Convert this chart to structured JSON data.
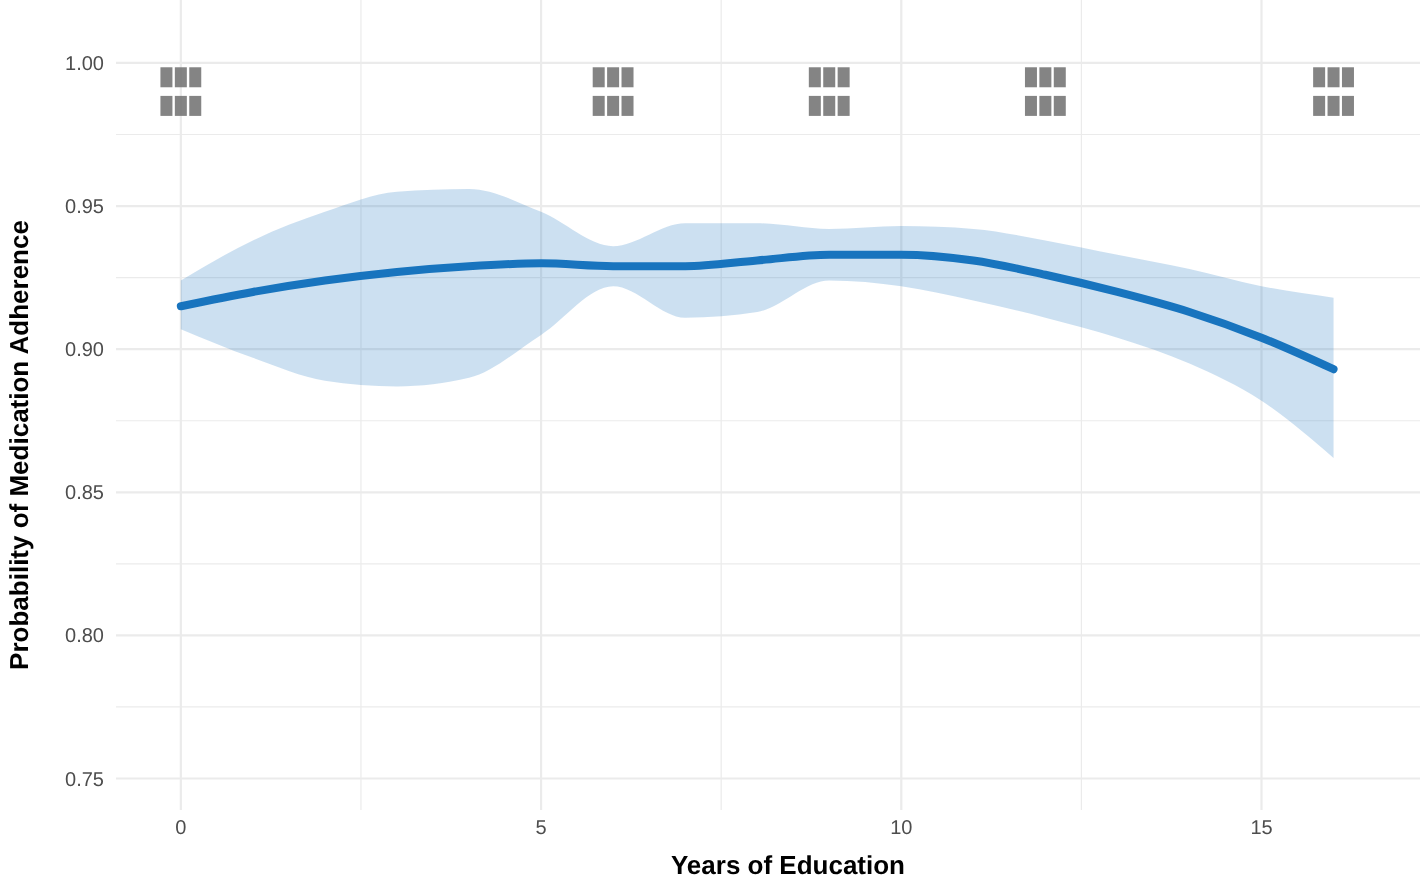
{
  "chart_data": {
    "type": "line",
    "xlabel": "Years of Education",
    "ylabel": "Probability of Medication Adherence",
    "xlim": [
      -0.9,
      17.2
    ],
    "ylim": [
      0.739,
      1.022
    ],
    "xticks": [
      {
        "value": 0,
        "label": "0"
      },
      {
        "value": 2.5,
        "label": null
      },
      {
        "value": 5,
        "label": "5"
      },
      {
        "value": 7.5,
        "label": null
      },
      {
        "value": 10,
        "label": "10"
      },
      {
        "value": 12.5,
        "label": null
      },
      {
        "value": 15,
        "label": "15"
      }
    ],
    "yticks": [
      {
        "value": 0.75,
        "label": "0.75"
      },
      {
        "value": 0.775,
        "label": null
      },
      {
        "value": 0.8,
        "label": "0.80"
      },
      {
        "value": 0.825,
        "label": null
      },
      {
        "value": 0.85,
        "label": "0.85"
      },
      {
        "value": 0.875,
        "label": null
      },
      {
        "value": 0.9,
        "label": "0.90"
      },
      {
        "value": 0.925,
        "label": null
      },
      {
        "value": 0.95,
        "label": "0.95"
      },
      {
        "value": 0.975,
        "label": null
      },
      {
        "value": 1.0,
        "label": "1.00"
      }
    ],
    "grid": true,
    "series": [
      {
        "color": "#1874be",
        "x": [
          0,
          1,
          2,
          3,
          4,
          5,
          6,
          7,
          8,
          9,
          10,
          11,
          12,
          13,
          14,
          15,
          16
        ],
        "values": [
          0.915,
          0.92,
          0.924,
          0.927,
          0.929,
          0.93,
          0.929,
          0.929,
          0.931,
          0.933,
          0.933,
          0.931,
          0.926,
          0.92,
          0.913,
          0.904,
          0.893
        ],
        "lower": [
          0.907,
          0.897,
          0.889,
          0.887,
          0.89,
          0.905,
          0.922,
          0.911,
          0.913,
          0.924,
          0.922,
          0.917,
          0.911,
          0.904,
          0.895,
          0.882,
          0.862
        ],
        "upper": [
          0.924,
          0.938,
          0.948,
          0.955,
          0.956,
          0.948,
          0.936,
          0.944,
          0.944,
          0.942,
          0.943,
          0.942,
          0.938,
          0.933,
          0.928,
          0.922,
          0.918
        ]
      },
      {
        "type": "scatter",
        "color": "#777777",
        "marker": "square",
        "x": [
          -0.2,
          0,
          0.2,
          -0.2,
          0,
          0.2,
          5.8,
          6,
          6.2,
          5.8,
          6,
          6.2,
          8.8,
          9,
          9.2,
          8.8,
          9,
          9.2,
          11.8,
          12,
          12.2,
          11.8,
          12,
          12.2,
          15.8,
          16,
          16.2,
          15.8,
          16,
          16.2
        ],
        "values": [
          0.985,
          0.985,
          0.985,
          0.995,
          0.995,
          0.995,
          0.985,
          0.985,
          0.985,
          0.995,
          0.995,
          0.995,
          0.985,
          0.985,
          0.985,
          0.995,
          0.995,
          0.995,
          0.985,
          0.985,
          0.985,
          0.995,
          0.995,
          0.995,
          0.985,
          0.985,
          0.985,
          0.995,
          0.995,
          0.995
        ]
      }
    ]
  }
}
